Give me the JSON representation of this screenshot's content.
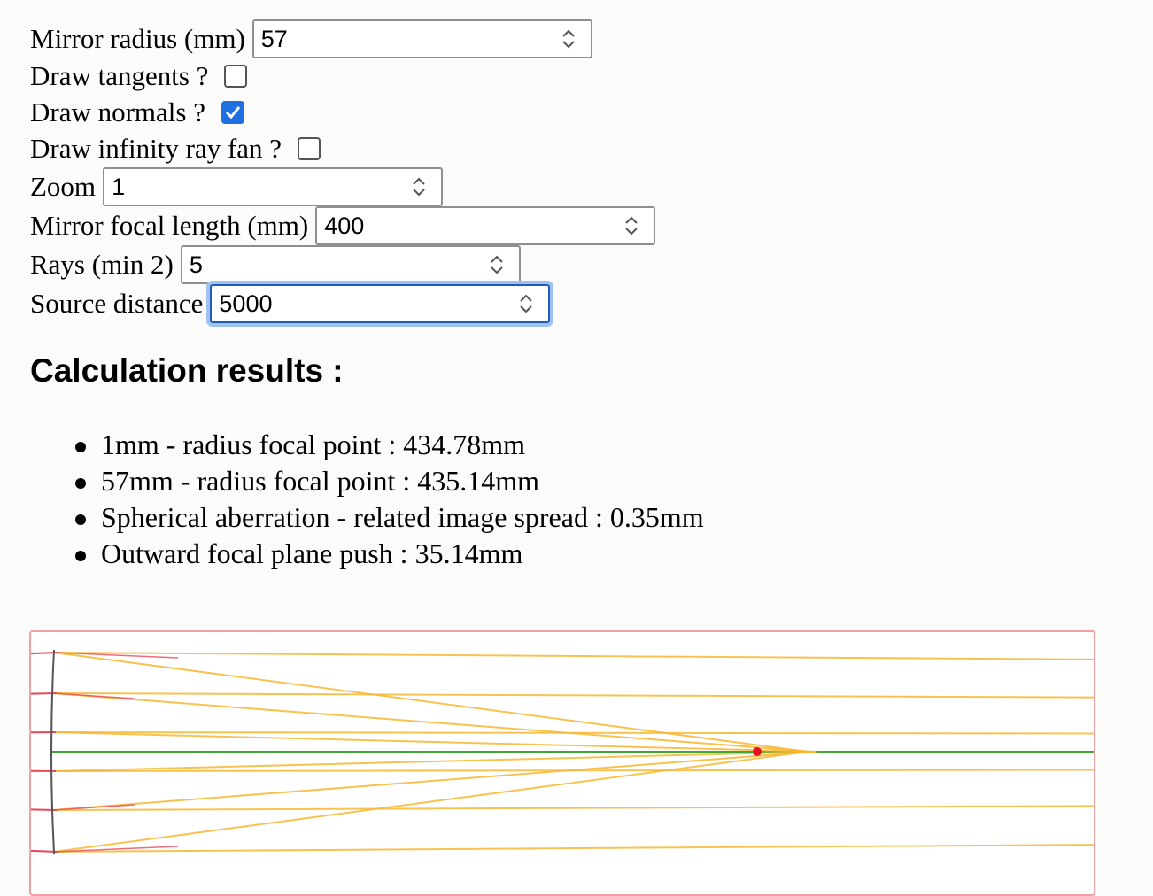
{
  "form": {
    "mirror_radius": {
      "label": "Mirror radius (mm)",
      "value": "57"
    },
    "draw_tangents": {
      "label": "Draw tangents ?",
      "checked": false
    },
    "draw_normals": {
      "label": "Draw normals ?",
      "checked": true
    },
    "draw_infinity_ray_fan": {
      "label": "Draw infinity ray fan ?",
      "checked": false
    },
    "zoom": {
      "label": "Zoom",
      "value": "1"
    },
    "mirror_focal_length": {
      "label": "Mirror focal length (mm)",
      "value": "400"
    },
    "rays": {
      "label": "Rays (min 2)",
      "value": "5"
    },
    "source_distance": {
      "label": "Source distance",
      "value": "5000"
    }
  },
  "results": {
    "heading": "Calculation results :",
    "items": [
      "1mm - radius focal point : 434.78mm",
      "57mm - radius focal point : 435.14mm",
      "Spherical aberration - related image spread : 0.35mm",
      "Outward focal plane push : 35.14mm"
    ]
  },
  "colors": {
    "ray": "#f7b733",
    "optical_axis": "#3fa535",
    "normal": "#e8475a",
    "mirror": "#555555",
    "focal_point": "#e8121e",
    "canvas_border": "#f1a0a3",
    "checkbox_accent": "#1f6fe0",
    "focus_ring": "#9fc3ef"
  }
}
